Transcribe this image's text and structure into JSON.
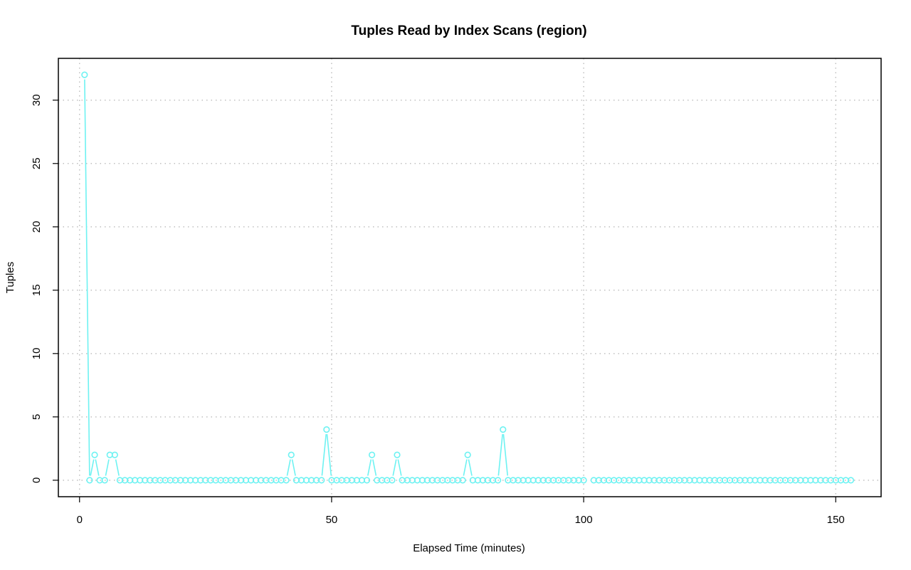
{
  "chart_data": {
    "type": "line",
    "title": "Tuples Read by Index Scans (region)",
    "xlabel": "Elapsed Time (minutes)",
    "ylabel": "Tuples",
    "xlim": [
      -4.2,
      159.0
    ],
    "ylim": [
      -1.3,
      33.3
    ],
    "xticks": [
      0,
      50,
      100,
      150
    ],
    "yticks": [
      0,
      5,
      10,
      15,
      20,
      25,
      30
    ],
    "grid": true,
    "line_style": "both",
    "color": "#6ef2f2",
    "series": [
      {
        "x": [
          1,
          2,
          3,
          4,
          5,
          6,
          7,
          8,
          9,
          10,
          11,
          12,
          13,
          14,
          15,
          16,
          17,
          18,
          19,
          20,
          21,
          22,
          23,
          24,
          25,
          26,
          27,
          28,
          29,
          30,
          31,
          32,
          33,
          34,
          35,
          36,
          37,
          38,
          39,
          40,
          41,
          42,
          43,
          44,
          45,
          46,
          47,
          48,
          49,
          50,
          51,
          52,
          53,
          54,
          55,
          56,
          57,
          58,
          59,
          60,
          61,
          62,
          63,
          64,
          65,
          66,
          67,
          68,
          69,
          70,
          71,
          72,
          73,
          74,
          75,
          76,
          77,
          78,
          79,
          80,
          81,
          82,
          83,
          84,
          85,
          86,
          87,
          88,
          89,
          90,
          91,
          92,
          93,
          94,
          95,
          96,
          97,
          98,
          99,
          100,
          101,
          102,
          103,
          104,
          105,
          106,
          107,
          108,
          109,
          110,
          111,
          112,
          113,
          114,
          115,
          116,
          117,
          118,
          119,
          120,
          121,
          122,
          123,
          124,
          125,
          126,
          127,
          128,
          129,
          130,
          131,
          132,
          133,
          134,
          135,
          136,
          137,
          138,
          139,
          140,
          141,
          142,
          143,
          144,
          145,
          146,
          147,
          148,
          149,
          150,
          151,
          152,
          153
        ],
        "values": [
          32,
          0,
          2,
          0,
          0,
          2,
          2,
          0,
          0,
          0,
          0,
          0,
          0,
          0,
          0,
          0,
          0,
          0,
          0,
          0,
          0,
          0,
          0,
          0,
          0,
          0,
          0,
          0,
          0,
          0,
          0,
          0,
          0,
          0,
          0,
          0,
          0,
          0,
          0,
          0,
          0,
          2,
          0,
          0,
          0,
          0,
          0,
          0,
          4,
          0,
          0,
          0,
          0,
          0,
          0,
          0,
          0,
          2,
          0,
          0,
          0,
          0,
          2,
          0,
          0,
          0,
          0,
          0,
          0,
          0,
          0,
          0,
          0,
          0,
          0,
          0,
          2,
          0,
          0,
          0,
          0,
          0,
          0,
          4,
          0,
          0,
          0,
          0,
          0,
          0,
          0,
          0,
          0,
          0,
          0,
          0,
          0,
          0,
          0,
          0,
          null,
          0,
          0,
          0,
          0,
          0,
          0,
          0,
          0,
          0,
          0,
          0,
          0,
          0,
          0,
          0,
          0,
          0,
          0,
          0,
          0,
          0,
          0,
          0,
          0,
          0,
          0,
          0,
          0,
          0,
          0,
          0,
          0,
          0,
          0,
          0,
          0,
          0,
          0,
          0,
          0,
          0,
          0,
          0,
          0,
          0,
          0,
          0,
          0,
          0,
          0,
          0,
          0
        ]
      }
    ]
  }
}
